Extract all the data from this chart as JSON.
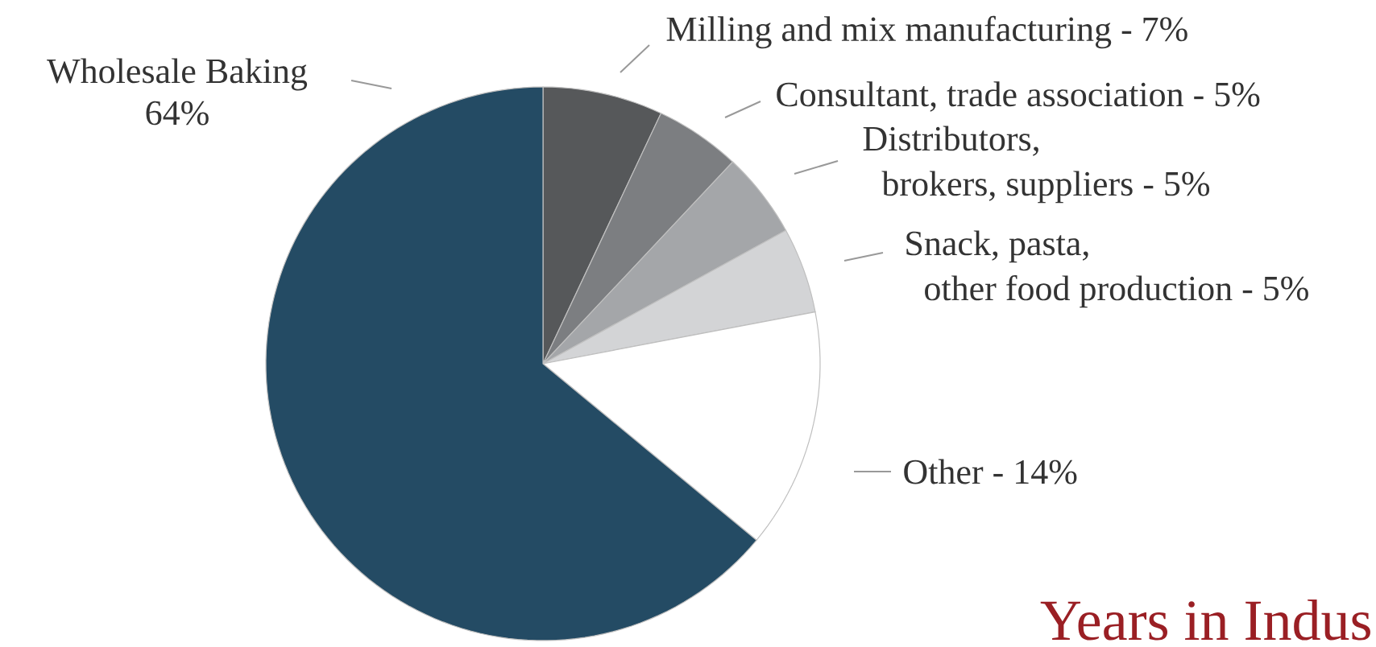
{
  "chart_data": {
    "type": "pie",
    "categories": [
      "Milling and mix manufacturing -",
      "Consultant, trade association -",
      "Distributors, brokers, suppliers -",
      "Snack, pasta, other food production -",
      "Other -",
      "Wholesale Baking"
    ],
    "values": [
      7,
      5,
      5,
      5,
      14,
      64
    ],
    "value_labels": [
      "7%",
      "5%",
      "5%",
      "5%",
      "14%",
      "64%"
    ],
    "colors": [
      "#56585a",
      "#7c7e81",
      "#a4a6a9",
      "#d3d4d6",
      "#ffffff",
      "#244b64"
    ],
    "annotations": [
      "Years in Indus"
    ]
  }
}
